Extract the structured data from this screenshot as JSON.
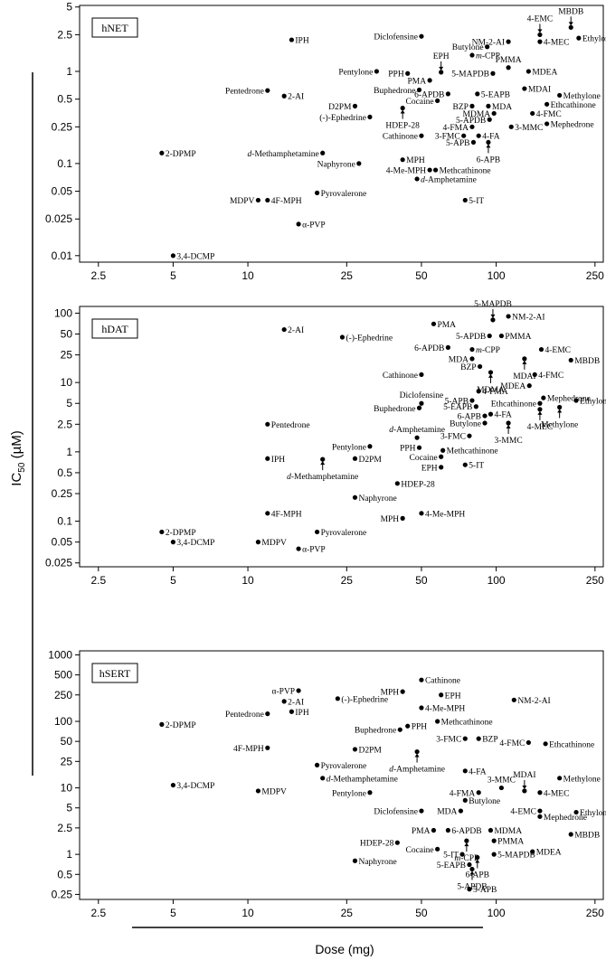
{
  "figure": {
    "y_label_main": "IC",
    "y_label_sub": "50",
    "y_label_unit": " (µM)",
    "x_label": "Dose (mg)"
  },
  "chart_data": [
    {
      "type": "scatter",
      "title": "hNET",
      "xscale": "log",
      "yscale": "log",
      "xlim": [
        2.1,
        270
      ],
      "ylim": [
        0.0085,
        5.2
      ],
      "xticks": [
        2.5,
        5,
        10,
        25,
        50,
        100,
        250
      ],
      "yticks": [
        0.01,
        0.025,
        0.05,
        0.1,
        0.25,
        0.5,
        1,
        2.5,
        5
      ],
      "xlabel": "Dose (mg)",
      "ylabel": "IC50 (µM)",
      "points": [
        {
          "label": "MBDB",
          "x": 200,
          "y": 3.0,
          "lp": "ab"
        },
        {
          "label": "4-EMC",
          "x": 150,
          "y": 2.5,
          "lp": "ab"
        },
        {
          "label": "Ethylone",
          "x": 215,
          "y": 2.3,
          "lp": "r"
        },
        {
          "label": "NM-2-AI",
          "x": 112,
          "y": 2.1,
          "lp": "l"
        },
        {
          "label": "4-MEC",
          "x": 150,
          "y": 2.1,
          "lp": "r"
        },
        {
          "label": "IPH",
          "x": 15,
          "y": 2.2,
          "lp": "r"
        },
        {
          "label": "Diclofensine",
          "x": 50,
          "y": 2.4,
          "lp": "l"
        },
        {
          "label": "Butylone",
          "x": 92,
          "y": 1.85,
          "lp": "l"
        },
        {
          "label": "m-CPP",
          "x": 80,
          "y": 1.5,
          "lp": "r",
          "mi": 1
        },
        {
          "label": "PMMA",
          "x": 112,
          "y": 1.1,
          "lp": "a"
        },
        {
          "label": "EPH",
          "x": 60,
          "y": 0.98,
          "lp": "ab"
        },
        {
          "label": "Pentylone",
          "x": 33,
          "y": 1.0,
          "lp": "l"
        },
        {
          "label": "PPH",
          "x": 44,
          "y": 0.95,
          "lp": "l"
        },
        {
          "label": "5-MAPDB",
          "x": 97,
          "y": 0.95,
          "lp": "l"
        },
        {
          "label": "MDEA",
          "x": 135,
          "y": 1.0,
          "lp": "r"
        },
        {
          "label": "PMA",
          "x": 54,
          "y": 0.8,
          "lp": "l"
        },
        {
          "label": "Pentedrone",
          "x": 12,
          "y": 0.62,
          "lp": "l"
        },
        {
          "label": "2-AI",
          "x": 14,
          "y": 0.54,
          "lp": "r"
        },
        {
          "label": "Buphedrone",
          "x": 49,
          "y": 0.63,
          "lp": "l"
        },
        {
          "label": "6-APDB",
          "x": 64,
          "y": 0.57,
          "lp": "l"
        },
        {
          "label": "5-EAPB",
          "x": 84,
          "y": 0.57,
          "lp": "r"
        },
        {
          "label": "MDAI",
          "x": 130,
          "y": 0.65,
          "lp": "r"
        },
        {
          "label": "Methylone",
          "x": 180,
          "y": 0.55,
          "lp": "r"
        },
        {
          "label": "Cocaine",
          "x": 58,
          "y": 0.48,
          "lp": "l"
        },
        {
          "label": "D2PM",
          "x": 27,
          "y": 0.42,
          "lp": "l"
        },
        {
          "label": "BZP",
          "x": 80,
          "y": 0.42,
          "lp": "l"
        },
        {
          "label": "MDA",
          "x": 93,
          "y": 0.42,
          "lp": "r"
        },
        {
          "label": "Ethcathinone",
          "x": 160,
          "y": 0.44,
          "lp": "r"
        },
        {
          "label": "HDEP-28",
          "x": 42,
          "y": 0.4,
          "lp": "be"
        },
        {
          "label": "(-)-Ephedrine",
          "x": 31,
          "y": 0.32,
          "lp": "l"
        },
        {
          "label": "MDMA",
          "x": 98,
          "y": 0.35,
          "lp": "l"
        },
        {
          "label": "4-FMC",
          "x": 140,
          "y": 0.35,
          "lp": "r"
        },
        {
          "label": "5-APDB",
          "x": 94,
          "y": 0.3,
          "lp": "l"
        },
        {
          "label": "4-FMA",
          "x": 80,
          "y": 0.25,
          "lp": "l"
        },
        {
          "label": "3-MMC",
          "x": 115,
          "y": 0.25,
          "lp": "r"
        },
        {
          "label": "Mephedrone",
          "x": 160,
          "y": 0.27,
          "lp": "r"
        },
        {
          "label": "Cathinone",
          "x": 50,
          "y": 0.2,
          "lp": "l"
        },
        {
          "label": "3-FMC",
          "x": 74,
          "y": 0.2,
          "lp": "l"
        },
        {
          "label": "4-FA",
          "x": 85,
          "y": 0.2,
          "lp": "r"
        },
        {
          "label": "5-APB",
          "x": 81,
          "y": 0.17,
          "lp": "l"
        },
        {
          "label": "6-APB",
          "x": 93,
          "y": 0.17,
          "lp": "be"
        },
        {
          "label": "2-DPMP",
          "x": 4.5,
          "y": 0.13,
          "lp": "r"
        },
        {
          "label": "d-Methamphetamine",
          "x": 20,
          "y": 0.13,
          "lp": "l",
          "ip": 1
        },
        {
          "label": "Naphyrone",
          "x": 28,
          "y": 0.1,
          "lp": "l"
        },
        {
          "label": "MPH",
          "x": 42,
          "y": 0.11,
          "lp": "r"
        },
        {
          "label": "4-Me-MPH",
          "x": 54,
          "y": 0.085,
          "lp": "l"
        },
        {
          "label": "Methcathinone",
          "x": 57,
          "y": 0.085,
          "lp": "r"
        },
        {
          "label": "d-Amphetamine",
          "x": 48,
          "y": 0.068,
          "lp": "r",
          "ip": 1
        },
        {
          "label": "Pyrovalerone",
          "x": 19,
          "y": 0.048,
          "lp": "r"
        },
        {
          "label": "MDPV",
          "x": 11,
          "y": 0.04,
          "lp": "l"
        },
        {
          "label": "4F-MPH",
          "x": 12,
          "y": 0.04,
          "lp": "r"
        },
        {
          "label": "5-IT",
          "x": 75,
          "y": 0.04,
          "lp": "r"
        },
        {
          "label": "α-PVP",
          "x": 16,
          "y": 0.022,
          "lp": "r"
        },
        {
          "label": "3,4-DCMP",
          "x": 5,
          "y": 0.01,
          "lp": "r"
        }
      ]
    },
    {
      "type": "scatter",
      "title": "hDAT",
      "xscale": "log",
      "yscale": "log",
      "xlim": [
        2.1,
        270
      ],
      "ylim": [
        0.022,
        125
      ],
      "xticks": [
        2.5,
        5,
        10,
        25,
        50,
        100,
        250
      ],
      "yticks": [
        0.025,
        0.05,
        0.1,
        0.25,
        0.5,
        1,
        2.5,
        5,
        10,
        25,
        50,
        100
      ],
      "xlabel": "Dose (mg)",
      "ylabel": "IC50 (µM)",
      "points": [
        {
          "label": "5-MAPDB",
          "x": 97,
          "y": 80,
          "lp": "ab"
        },
        {
          "label": "NM-2-AI",
          "x": 112,
          "y": 90,
          "lp": "r"
        },
        {
          "label": "PMA",
          "x": 56,
          "y": 70,
          "lp": "r"
        },
        {
          "label": "2-AI",
          "x": 14,
          "y": 58,
          "lp": "r"
        },
        {
          "label": "(-)-Ephedrine",
          "x": 24,
          "y": 45,
          "lp": "r"
        },
        {
          "label": "5-APDB",
          "x": 94,
          "y": 47,
          "lp": "l"
        },
        {
          "label": "PMMA",
          "x": 105,
          "y": 47,
          "lp": "r"
        },
        {
          "label": "6-APDB",
          "x": 64,
          "y": 32,
          "lp": "l"
        },
        {
          "label": "m-CPP",
          "x": 80,
          "y": 30,
          "lp": "r",
          "mi": 1
        },
        {
          "label": "4-EMC",
          "x": 152,
          "y": 30,
          "lp": "r"
        },
        {
          "label": "MDA",
          "x": 80,
          "y": 22,
          "lp": "l"
        },
        {
          "label": "MBDB",
          "x": 200,
          "y": 21,
          "lp": "r"
        },
        {
          "label": "BZP",
          "x": 86,
          "y": 17,
          "lp": "l"
        },
        {
          "label": "MDAI",
          "x": 130,
          "y": 22,
          "lp": "be"
        },
        {
          "label": "Cathinone",
          "x": 50,
          "y": 13,
          "lp": "l"
        },
        {
          "label": "MDMA",
          "x": 95,
          "y": 14,
          "lp": "be"
        },
        {
          "label": "4-FMC",
          "x": 143,
          "y": 13,
          "lp": "r"
        },
        {
          "label": "MDEA",
          "x": 136,
          "y": 9,
          "lp": "l"
        },
        {
          "label": "Diclofensine",
          "x": 50,
          "y": 5,
          "lp": "a"
        },
        {
          "label": "4-FMA",
          "x": 85,
          "y": 7.5,
          "lp": "r"
        },
        {
          "label": "5-APB",
          "x": 80,
          "y": 5.5,
          "lp": "l"
        },
        {
          "label": "5-EAPB",
          "x": 83,
          "y": 4.5,
          "lp": "l"
        },
        {
          "label": "Buphedrone",
          "x": 49,
          "y": 4.3,
          "lp": "l"
        },
        {
          "label": "Mephedrone",
          "x": 155,
          "y": 6.0,
          "lp": "r"
        },
        {
          "label": "Ethylone",
          "x": 210,
          "y": 5.5,
          "lp": "r"
        },
        {
          "label": "Ethcathinone",
          "x": 150,
          "y": 5.0,
          "lp": "l"
        },
        {
          "label": "Methylone",
          "x": 180,
          "y": 4.4,
          "lp": "be"
        },
        {
          "label": "4-MEC",
          "x": 150,
          "y": 4.1,
          "lp": "be"
        },
        {
          "label": "6-APB",
          "x": 90,
          "y": 3.3,
          "lp": "l"
        },
        {
          "label": "4-FA",
          "x": 95,
          "y": 3.5,
          "lp": "r"
        },
        {
          "label": "Butylone",
          "x": 90,
          "y": 2.6,
          "lp": "l"
        },
        {
          "label": "3-MMC",
          "x": 112,
          "y": 2.6,
          "lp": "be"
        },
        {
          "label": "Pentedrone",
          "x": 12,
          "y": 2.5,
          "lp": "r"
        },
        {
          "label": "d-Amphetamine",
          "x": 48,
          "y": 1.6,
          "lp": "a",
          "ip": 1
        },
        {
          "label": "3-FMC",
          "x": 78,
          "y": 1.7,
          "lp": "l"
        },
        {
          "label": "Pentylone",
          "x": 31,
          "y": 1.2,
          "lp": "l"
        },
        {
          "label": "PPH",
          "x": 49,
          "y": 1.15,
          "lp": "l"
        },
        {
          "label": "Methcathinone",
          "x": 61,
          "y": 1.05,
          "lp": "r"
        },
        {
          "label": "IPH",
          "x": 12,
          "y": 0.8,
          "lp": "r"
        },
        {
          "label": "D2PM",
          "x": 27,
          "y": 0.8,
          "lp": "r"
        },
        {
          "label": "Cocaine",
          "x": 60,
          "y": 0.85,
          "lp": "l"
        },
        {
          "label": "d-Methamphetamine",
          "x": 20,
          "y": 0.78,
          "lp": "be",
          "ip": 1
        },
        {
          "label": "EPH",
          "x": 60,
          "y": 0.6,
          "lp": "l"
        },
        {
          "label": "5-IT",
          "x": 75,
          "y": 0.65,
          "lp": "r"
        },
        {
          "label": "HDEP-28",
          "x": 40,
          "y": 0.35,
          "lp": "r"
        },
        {
          "label": "Naphyrone",
          "x": 27,
          "y": 0.22,
          "lp": "r"
        },
        {
          "label": "4F-MPH",
          "x": 12,
          "y": 0.13,
          "lp": "r"
        },
        {
          "label": "4-Me-MPH",
          "x": 50,
          "y": 0.13,
          "lp": "r"
        },
        {
          "label": "MPH",
          "x": 42,
          "y": 0.11,
          "lp": "l"
        },
        {
          "label": "2-DPMP",
          "x": 4.5,
          "y": 0.07,
          "lp": "r"
        },
        {
          "label": "Pyrovalerone",
          "x": 19,
          "y": 0.07,
          "lp": "r"
        },
        {
          "label": "3,4-DCMP",
          "x": 5,
          "y": 0.05,
          "lp": "r"
        },
        {
          "label": "MDPV",
          "x": 11,
          "y": 0.05,
          "lp": "r"
        },
        {
          "label": "α-PVP",
          "x": 16,
          "y": 0.04,
          "lp": "r"
        }
      ]
    },
    {
      "type": "scatter",
      "title": "hSERT",
      "xscale": "log",
      "yscale": "log",
      "xlim": [
        2.1,
        270
      ],
      "ylim": [
        0.21,
        1150
      ],
      "xticks": [
        2.5,
        5,
        10,
        25,
        50,
        100,
        250
      ],
      "yticks": [
        0.25,
        0.5,
        1,
        2.5,
        5,
        10,
        25,
        50,
        100,
        250,
        500,
        1000
      ],
      "xlabel": "Dose (mg)",
      "ylabel": "IC50 (µM)",
      "points": [
        {
          "label": "Cathinone",
          "x": 50,
          "y": 420,
          "lp": "r"
        },
        {
          "label": "α-PVP",
          "x": 16,
          "y": 290,
          "lp": "l"
        },
        {
          "label": "MPH",
          "x": 42,
          "y": 280,
          "lp": "l"
        },
        {
          "label": "EPH",
          "x": 60,
          "y": 250,
          "lp": "r"
        },
        {
          "label": "2-AI",
          "x": 14,
          "y": 200,
          "lp": "r"
        },
        {
          "label": "(-)-Ephedrine",
          "x": 23,
          "y": 220,
          "lp": "r"
        },
        {
          "label": "NM-2-AI",
          "x": 118,
          "y": 210,
          "lp": "r"
        },
        {
          "label": "4-Me-MPH",
          "x": 50,
          "y": 160,
          "lp": "r"
        },
        {
          "label": "Pentedrone",
          "x": 12,
          "y": 130,
          "lp": "l"
        },
        {
          "label": "IPH",
          "x": 15,
          "y": 140,
          "lp": "r"
        },
        {
          "label": "2-DPMP",
          "x": 4.5,
          "y": 90,
          "lp": "r"
        },
        {
          "label": "Methcathinone",
          "x": 58,
          "y": 100,
          "lp": "r"
        },
        {
          "label": "PPH",
          "x": 44,
          "y": 85,
          "lp": "r"
        },
        {
          "label": "Buphedrone",
          "x": 41,
          "y": 75,
          "lp": "l"
        },
        {
          "label": "3-FMC",
          "x": 75,
          "y": 55,
          "lp": "l"
        },
        {
          "label": "BZP",
          "x": 85,
          "y": 55,
          "lp": "r"
        },
        {
          "label": "4-FMC",
          "x": 135,
          "y": 48,
          "lp": "l"
        },
        {
          "label": "Ethcathinone",
          "x": 158,
          "y": 46,
          "lp": "r"
        },
        {
          "label": "4F-MPH",
          "x": 12,
          "y": 40,
          "lp": "l"
        },
        {
          "label": "D2PM",
          "x": 27,
          "y": 38,
          "lp": "r"
        },
        {
          "label": "d-Amphetamine",
          "x": 48,
          "y": 35,
          "lp": "be",
          "ip": 1
        },
        {
          "label": "Pyrovalerone",
          "x": 19,
          "y": 22,
          "lp": "r"
        },
        {
          "label": "4-FA",
          "x": 75,
          "y": 18,
          "lp": "r"
        },
        {
          "label": "d-Methamphetamine",
          "x": 20,
          "y": 14,
          "lp": "r",
          "ip": 1
        },
        {
          "label": "3-MMC",
          "x": 105,
          "y": 10,
          "lp": "a"
        },
        {
          "label": "MDAI",
          "x": 130,
          "y": 9,
          "lp": "ab"
        },
        {
          "label": "Methylone",
          "x": 180,
          "y": 14,
          "lp": "r"
        },
        {
          "label": "3,4-DCMP",
          "x": 5,
          "y": 11,
          "lp": "r"
        },
        {
          "label": "MDPV",
          "x": 11,
          "y": 9,
          "lp": "r"
        },
        {
          "label": "Pentylone",
          "x": 31,
          "y": 8.5,
          "lp": "l"
        },
        {
          "label": "4-FMA",
          "x": 85,
          "y": 8.5,
          "lp": "l"
        },
        {
          "label": "4-MEC",
          "x": 150,
          "y": 8.5,
          "lp": "r"
        },
        {
          "label": "Butylone",
          "x": 75,
          "y": 6.5,
          "lp": "r"
        },
        {
          "label": "Diclofensine",
          "x": 50,
          "y": 4.5,
          "lp": "l"
        },
        {
          "label": "MDA",
          "x": 72,
          "y": 4.5,
          "lp": "l"
        },
        {
          "label": "4-EMC",
          "x": 150,
          "y": 4.5,
          "lp": "l"
        },
        {
          "label": "Mephedrone",
          "x": 150,
          "y": 3.7,
          "lp": "r"
        },
        {
          "label": "Ethylone",
          "x": 210,
          "y": 4.3,
          "lp": "r"
        },
        {
          "label": "PMA",
          "x": 56,
          "y": 2.3,
          "lp": "l"
        },
        {
          "label": "6-APDB",
          "x": 64,
          "y": 2.3,
          "lp": "r"
        },
        {
          "label": "MDMA",
          "x": 95,
          "y": 2.3,
          "lp": "r"
        },
        {
          "label": "MBDB",
          "x": 200,
          "y": 2.0,
          "lp": "r"
        },
        {
          "label": "HDEP-28",
          "x": 40,
          "y": 1.5,
          "lp": "l"
        },
        {
          "label": "m-CPP",
          "x": 76,
          "y": 1.6,
          "lp": "be",
          "mi": 1
        },
        {
          "label": "PMMA",
          "x": 98,
          "y": 1.6,
          "lp": "r"
        },
        {
          "label": "Cocaine",
          "x": 58,
          "y": 1.2,
          "lp": "l"
        },
        {
          "label": "5-IT",
          "x": 73,
          "y": 1.0,
          "lp": "l"
        },
        {
          "label": "5-MAPDB",
          "x": 98,
          "y": 1.0,
          "lp": "r"
        },
        {
          "label": "MDEA",
          "x": 140,
          "y": 1.1,
          "lp": "r"
        },
        {
          "label": "6-APB",
          "x": 84,
          "y": 0.9,
          "lp": "be"
        },
        {
          "label": "Naphyrone",
          "x": 27,
          "y": 0.8,
          "lp": "r"
        },
        {
          "label": "5-EAPB",
          "x": 78,
          "y": 0.7,
          "lp": "l"
        },
        {
          "label": "5-APDB",
          "x": 80,
          "y": 0.6,
          "lp": "be"
        },
        {
          "label": "5-APB",
          "x": 78,
          "y": 0.3,
          "lp": "r"
        }
      ]
    }
  ]
}
